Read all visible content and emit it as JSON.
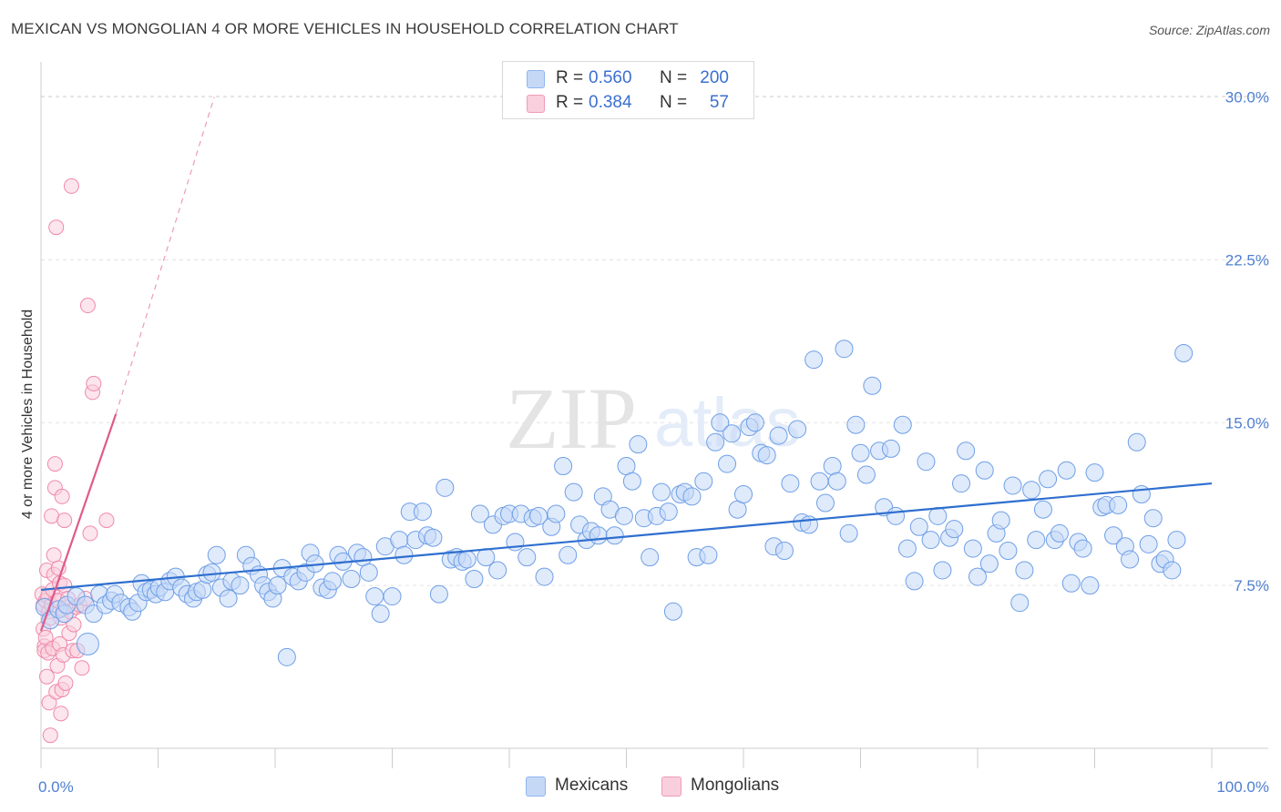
{
  "title": "MEXICAN VS MONGOLIAN 4 OR MORE VEHICLES IN HOUSEHOLD CORRELATION CHART",
  "source": "Source: ZipAtlas.com",
  "watermark": {
    "zip": "ZIP",
    "atlas": "atlas"
  },
  "legend": {
    "r_label": "R =",
    "n_label": "N =",
    "rows": [
      {
        "series": "Mexicans",
        "r": "0.560",
        "n": "200",
        "color": "#8fb5ee",
        "fill": "#c5d9f7"
      },
      {
        "series": "Mongolians",
        "r": "0.384",
        "n": "57",
        "color": "#ef9bb7",
        "fill": "#f9cfdd"
      }
    ]
  },
  "chart_data": {
    "type": "scatter",
    "title": "MEXICAN VS MONGOLIAN 4 OR MORE VEHICLES IN HOUSEHOLD CORRELATION CHART",
    "xlabel": "",
    "ylabel": "4 or more Vehicles in Household",
    "x_unit": "%",
    "y_unit": "%",
    "xlim": [
      0,
      100
    ],
    "ylim": [
      0,
      31.2
    ],
    "x_ticks": [
      "0.0%",
      "100.0%"
    ],
    "y_ticks": [
      {
        "value": 7.5,
        "label": "7.5%"
      },
      {
        "value": 15.0,
        "label": "15.0%"
      },
      {
        "value": 22.5,
        "label": "22.5%"
      },
      {
        "value": 30.0,
        "label": "30.0%"
      }
    ],
    "grid": "horizontal dashed",
    "legend_position": "bottom-center",
    "series": [
      {
        "name": "Mexicans",
        "color": "#6f9fe6",
        "trend": {
          "x": [
            0,
            100
          ],
          "y": [
            7.3,
            12.2
          ],
          "color": "#2f6fcf"
        },
        "points": [
          [
            0.3,
            6.5
          ],
          [
            0.8,
            5.9
          ],
          [
            1.5,
            6.4
          ],
          [
            2.0,
            6.2
          ],
          [
            2.2,
            6.6
          ],
          [
            3.0,
            7.0
          ],
          [
            3.8,
            6.6
          ],
          [
            4.0,
            4.8
          ],
          [
            4.5,
            6.2
          ],
          [
            5.0,
            7.1
          ],
          [
            5.5,
            6.6
          ],
          [
            6.0,
            6.8
          ],
          [
            6.3,
            7.1
          ],
          [
            6.8,
            6.7
          ],
          [
            7.5,
            6.5
          ],
          [
            7.8,
            6.3
          ],
          [
            8.3,
            6.7
          ],
          [
            8.6,
            7.6
          ],
          [
            9.0,
            7.2
          ],
          [
            9.4,
            7.3
          ],
          [
            9.8,
            7.1
          ],
          [
            10.1,
            7.4
          ],
          [
            10.6,
            7.2
          ],
          [
            11.0,
            7.7
          ],
          [
            11.5,
            7.9
          ],
          [
            12.0,
            7.4
          ],
          [
            12.5,
            7.1
          ],
          [
            13.0,
            6.9
          ],
          [
            13.3,
            7.2
          ],
          [
            13.8,
            7.3
          ],
          [
            14.2,
            8.0
          ],
          [
            14.6,
            8.1
          ],
          [
            15.0,
            8.9
          ],
          [
            15.4,
            7.4
          ],
          [
            16.0,
            6.9
          ],
          [
            16.3,
            7.7
          ],
          [
            17.0,
            7.5
          ],
          [
            17.5,
            8.9
          ],
          [
            18.0,
            8.4
          ],
          [
            18.6,
            8.0
          ],
          [
            19.0,
            7.5
          ],
          [
            19.4,
            7.2
          ],
          [
            19.8,
            6.9
          ],
          [
            20.2,
            7.5
          ],
          [
            20.6,
            8.3
          ],
          [
            21.0,
            4.2
          ],
          [
            21.5,
            7.9
          ],
          [
            22.0,
            7.7
          ],
          [
            22.6,
            8.1
          ],
          [
            23.0,
            9.0
          ],
          [
            23.4,
            8.5
          ],
          [
            24.0,
            7.4
          ],
          [
            24.5,
            7.3
          ],
          [
            24.9,
            7.7
          ],
          [
            25.4,
            8.9
          ],
          [
            25.8,
            8.6
          ],
          [
            26.5,
            7.8
          ],
          [
            27.0,
            9.0
          ],
          [
            27.5,
            8.8
          ],
          [
            28.0,
            8.1
          ],
          [
            28.5,
            7.0
          ],
          [
            29.0,
            6.2
          ],
          [
            29.4,
            9.3
          ],
          [
            30.0,
            7.0
          ],
          [
            30.6,
            9.6
          ],
          [
            31.0,
            8.9
          ],
          [
            31.5,
            10.9
          ],
          [
            32.0,
            9.6
          ],
          [
            32.6,
            10.9
          ],
          [
            33.0,
            9.8
          ],
          [
            33.5,
            9.7
          ],
          [
            34.0,
            7.1
          ],
          [
            34.5,
            12.0
          ],
          [
            35.0,
            8.7
          ],
          [
            35.5,
            8.8
          ],
          [
            36.0,
            8.6
          ],
          [
            36.4,
            8.7
          ],
          [
            37.0,
            7.8
          ],
          [
            37.5,
            10.8
          ],
          [
            38.0,
            8.8
          ],
          [
            38.6,
            10.3
          ],
          [
            39.0,
            8.2
          ],
          [
            39.5,
            10.7
          ],
          [
            40.0,
            10.8
          ],
          [
            40.5,
            9.5
          ],
          [
            41.0,
            10.8
          ],
          [
            41.5,
            8.8
          ],
          [
            42.0,
            10.6
          ],
          [
            42.5,
            10.7
          ],
          [
            43.0,
            7.9
          ],
          [
            43.6,
            10.2
          ],
          [
            44.0,
            10.8
          ],
          [
            44.6,
            13.0
          ],
          [
            45.0,
            8.9
          ],
          [
            45.5,
            11.8
          ],
          [
            46.0,
            10.3
          ],
          [
            46.6,
            9.6
          ],
          [
            47.0,
            10.0
          ],
          [
            47.6,
            9.8
          ],
          [
            48.0,
            11.6
          ],
          [
            48.6,
            11.0
          ],
          [
            49.0,
            9.8
          ],
          [
            49.8,
            10.7
          ],
          [
            50.0,
            13.0
          ],
          [
            50.5,
            12.3
          ],
          [
            51.0,
            14.0
          ],
          [
            51.5,
            10.6
          ],
          [
            52.0,
            8.8
          ],
          [
            52.6,
            10.7
          ],
          [
            53.0,
            11.8
          ],
          [
            53.6,
            10.9
          ],
          [
            54.0,
            6.3
          ],
          [
            54.6,
            11.7
          ],
          [
            55.0,
            11.8
          ],
          [
            55.6,
            11.6
          ],
          [
            56.0,
            8.8
          ],
          [
            56.6,
            12.3
          ],
          [
            57.0,
            8.9
          ],
          [
            57.6,
            14.1
          ],
          [
            58.0,
            15.0
          ],
          [
            58.6,
            13.1
          ],
          [
            59.0,
            14.5
          ],
          [
            59.5,
            11.0
          ],
          [
            60.0,
            11.7
          ],
          [
            60.5,
            14.8
          ],
          [
            61.0,
            15.0
          ],
          [
            61.5,
            13.6
          ],
          [
            62.0,
            13.5
          ],
          [
            62.6,
            9.3
          ],
          [
            63.0,
            14.4
          ],
          [
            63.5,
            9.1
          ],
          [
            64.0,
            12.2
          ],
          [
            64.6,
            14.7
          ],
          [
            65.0,
            10.4
          ],
          [
            65.6,
            10.3
          ],
          [
            66.0,
            17.9
          ],
          [
            66.5,
            12.3
          ],
          [
            67.0,
            11.3
          ],
          [
            67.6,
            13.0
          ],
          [
            68.0,
            12.3
          ],
          [
            68.6,
            18.4
          ],
          [
            69.0,
            9.9
          ],
          [
            69.6,
            14.9
          ],
          [
            70.0,
            13.6
          ],
          [
            70.5,
            12.6
          ],
          [
            71.0,
            16.7
          ],
          [
            71.6,
            13.7
          ],
          [
            72.0,
            11.1
          ],
          [
            72.6,
            13.8
          ],
          [
            73.0,
            10.7
          ],
          [
            73.6,
            14.9
          ],
          [
            74.0,
            9.2
          ],
          [
            74.6,
            7.7
          ],
          [
            75.0,
            10.2
          ],
          [
            75.6,
            13.2
          ],
          [
            76.0,
            9.6
          ],
          [
            76.6,
            10.7
          ],
          [
            77.0,
            8.2
          ],
          [
            77.6,
            9.7
          ],
          [
            78.0,
            10.1
          ],
          [
            78.6,
            12.2
          ],
          [
            79.0,
            13.7
          ],
          [
            79.6,
            9.2
          ],
          [
            80.0,
            7.9
          ],
          [
            80.6,
            12.8
          ],
          [
            81.0,
            8.5
          ],
          [
            81.6,
            9.9
          ],
          [
            82.0,
            10.5
          ],
          [
            82.6,
            9.1
          ],
          [
            83.0,
            12.1
          ],
          [
            83.6,
            6.7
          ],
          [
            84.0,
            8.2
          ],
          [
            84.6,
            11.9
          ],
          [
            85.0,
            9.6
          ],
          [
            85.6,
            11.0
          ],
          [
            86.0,
            12.4
          ],
          [
            86.6,
            9.6
          ],
          [
            87.0,
            9.9
          ],
          [
            87.6,
            12.8
          ],
          [
            88.0,
            7.6
          ],
          [
            88.6,
            9.5
          ],
          [
            89.0,
            9.2
          ],
          [
            89.6,
            7.5
          ],
          [
            90.0,
            12.7
          ],
          [
            90.6,
            11.1
          ],
          [
            91.0,
            11.2
          ],
          [
            91.6,
            9.8
          ],
          [
            92.0,
            11.2
          ],
          [
            92.6,
            9.3
          ],
          [
            93.0,
            8.7
          ],
          [
            93.6,
            14.1
          ],
          [
            94.0,
            11.7
          ],
          [
            94.6,
            9.4
          ],
          [
            95.0,
            10.6
          ],
          [
            95.6,
            8.5
          ],
          [
            96.0,
            8.7
          ],
          [
            96.6,
            8.2
          ],
          [
            97.0,
            9.6
          ],
          [
            97.6,
            18.2
          ]
        ]
      },
      {
        "name": "Mongolians",
        "color": "#ef89ab",
        "trend": {
          "x": [
            0,
            6.4
          ],
          "y": [
            5.4,
            15.4
          ],
          "color": "#e05a8c"
        },
        "trend_extension": {
          "x": [
            6.4,
            14.8
          ],
          "y": [
            15.4,
            30.0
          ]
        },
        "points": [
          [
            0.1,
            7.1
          ],
          [
            0.2,
            6.6
          ],
          [
            0.2,
            5.5
          ],
          [
            0.3,
            4.7
          ],
          [
            0.3,
            4.5
          ],
          [
            0.4,
            6.8
          ],
          [
            0.4,
            5.1
          ],
          [
            0.5,
            8.2
          ],
          [
            0.5,
            3.3
          ],
          [
            0.6,
            4.4
          ],
          [
            0.6,
            7.0
          ],
          [
            0.7,
            6.3
          ],
          [
            0.7,
            2.1
          ],
          [
            0.8,
            6.0
          ],
          [
            0.8,
            0.6
          ],
          [
            0.9,
            6.6
          ],
          [
            0.9,
            10.7
          ],
          [
            1.0,
            7.3
          ],
          [
            1.0,
            4.6
          ],
          [
            1.1,
            8.0
          ],
          [
            1.1,
            8.9
          ],
          [
            1.2,
            12.0
          ],
          [
            1.2,
            13.1
          ],
          [
            1.3,
            2.6
          ],
          [
            1.3,
            24.0
          ],
          [
            1.4,
            6.8
          ],
          [
            1.4,
            3.8
          ],
          [
            1.5,
            6.8
          ],
          [
            1.5,
            8.3
          ],
          [
            1.6,
            7.6
          ],
          [
            1.6,
            4.8
          ],
          [
            1.7,
            6.0
          ],
          [
            1.7,
            1.6
          ],
          [
            1.8,
            11.6
          ],
          [
            1.8,
            2.7
          ],
          [
            1.9,
            6.4
          ],
          [
            1.9,
            4.3
          ],
          [
            2.0,
            7.5
          ],
          [
            2.0,
            10.5
          ],
          [
            2.1,
            3.0
          ],
          [
            2.2,
            6.5
          ],
          [
            2.3,
            6.9
          ],
          [
            2.4,
            5.3
          ],
          [
            2.5,
            6.3
          ],
          [
            2.6,
            25.9
          ],
          [
            2.7,
            4.5
          ],
          [
            2.8,
            5.7
          ],
          [
            3.0,
            6.5
          ],
          [
            3.3,
            6.6
          ],
          [
            3.5,
            3.7
          ],
          [
            3.8,
            6.9
          ],
          [
            4.0,
            20.4
          ],
          [
            4.2,
            9.9
          ],
          [
            4.4,
            16.4
          ],
          [
            4.5,
            16.8
          ],
          [
            5.6,
            10.5
          ],
          [
            3.1,
            4.5
          ]
        ]
      }
    ]
  }
}
